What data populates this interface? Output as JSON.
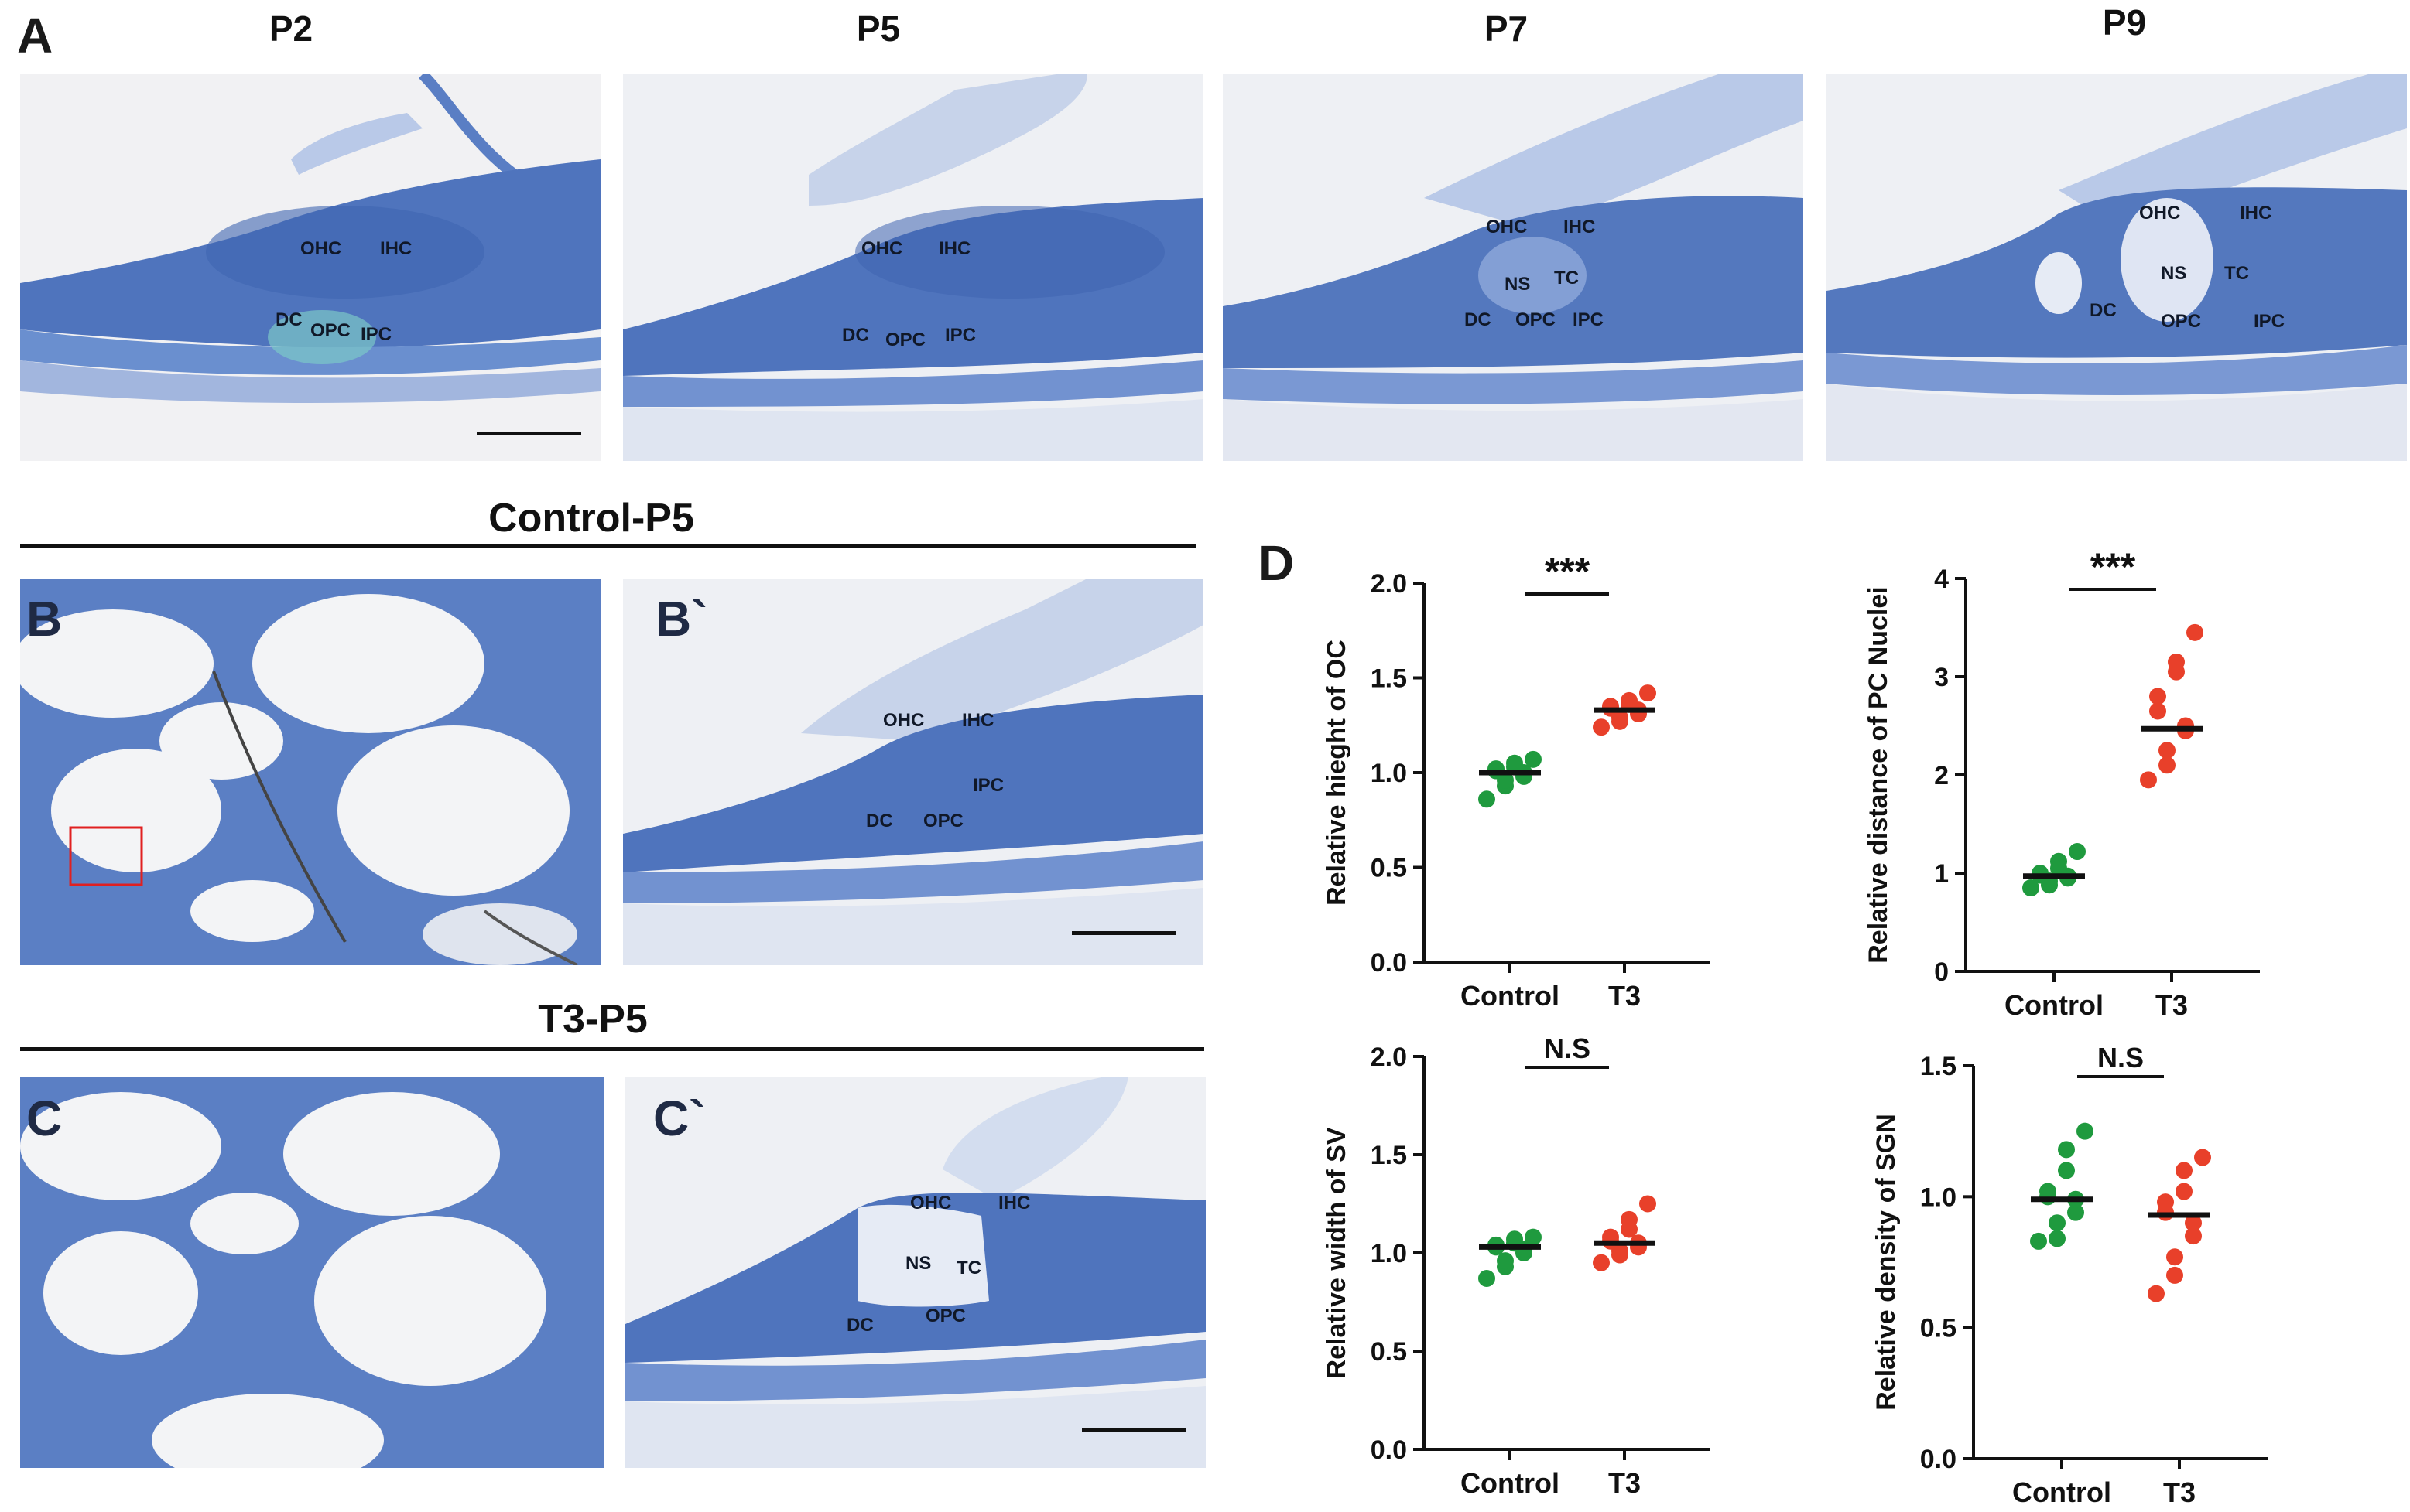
{
  "panel_A": {
    "letter": "A",
    "images": [
      {
        "time": "P2",
        "labels": [
          "OHC",
          "IHC",
          "DC",
          "OPC",
          "IPC"
        ]
      },
      {
        "time": "P5",
        "labels": [
          "OHC",
          "IHC",
          "DC",
          "OPC",
          "IPC"
        ]
      },
      {
        "time": "P7",
        "labels": [
          "OHC",
          "IHC",
          "NS",
          "TC",
          "DC",
          "OPC",
          "IPC"
        ]
      },
      {
        "time": "P9",
        "labels": [
          "OHC",
          "IHC",
          "NS",
          "TC",
          "DC",
          "OPC",
          "IPC"
        ]
      }
    ]
  },
  "panel_B": {
    "title": "Control-P5",
    "letter": "B",
    "zoom_letter": "B`",
    "labels": [
      "OHC",
      "IHC",
      "IPC",
      "DC",
      "OPC"
    ]
  },
  "panel_C": {
    "title": "T3-P5",
    "letter": "C",
    "zoom_letter": "C`",
    "labels": [
      "OHC",
      "IHC",
      "NS",
      "TC",
      "DC",
      "OPC"
    ]
  },
  "panel_D": {
    "letter": "D"
  },
  "colors": {
    "control": "#1f9a3e",
    "t3": "#e8402a",
    "stain": "#5878b8"
  },
  "chart_data": [
    {
      "type": "scatter",
      "title": "",
      "ylabel": "Relative hieght of OC",
      "categories": [
        "Control",
        "T3"
      ],
      "ylim": [
        0,
        2.0
      ],
      "yticks": [
        "0.0",
        "0.5",
        "1.0",
        "1.5",
        "2.0"
      ],
      "yticks_values": [
        0,
        0.5,
        1.0,
        1.5,
        2.0
      ],
      "significance": "***",
      "series": [
        {
          "name": "Control",
          "values": [
            0.86,
            0.93,
            0.96,
            0.98,
            1.0,
            1.01,
            1.02,
            1.03,
            1.05,
            1.07
          ],
          "median": 1.0
        },
        {
          "name": "T3",
          "values": [
            1.24,
            1.27,
            1.29,
            1.31,
            1.33,
            1.34,
            1.35,
            1.36,
            1.38,
            1.42
          ],
          "median": 1.33
        }
      ]
    },
    {
      "type": "scatter",
      "title": "",
      "ylabel": "Relative distance of  PC Nuclei",
      "categories": [
        "Control",
        "T3"
      ],
      "ylim": [
        0,
        4
      ],
      "yticks": [
        "0",
        "1",
        "2",
        "3",
        "4"
      ],
      "yticks_values": [
        0,
        1,
        2,
        3,
        4
      ],
      "significance": "***",
      "series": [
        {
          "name": "Control",
          "values": [
            0.85,
            0.88,
            0.92,
            0.95,
            0.97,
            0.98,
            1.0,
            1.05,
            1.12,
            1.22
          ],
          "median": 0.97
        },
        {
          "name": "T3",
          "values": [
            1.95,
            2.1,
            2.25,
            2.45,
            2.5,
            2.65,
            2.8,
            3.05,
            3.15,
            3.45
          ],
          "median": 2.47
        }
      ]
    },
    {
      "type": "scatter",
      "title": "",
      "ylabel": "Relative width of SV",
      "categories": [
        "Control",
        "T3"
      ],
      "ylim": [
        0,
        2.0
      ],
      "yticks": [
        "0.0",
        "0.5",
        "1.0",
        "1.5",
        "2.0"
      ],
      "yticks_values": [
        0,
        0.5,
        1.0,
        1.5,
        2.0
      ],
      "significance": "N.S",
      "series": [
        {
          "name": "Control",
          "values": [
            0.87,
            0.93,
            0.96,
            1.0,
            1.02,
            1.03,
            1.04,
            1.05,
            1.07,
            1.08
          ],
          "median": 1.03
        },
        {
          "name": "T3",
          "values": [
            0.95,
            0.99,
            1.01,
            1.03,
            1.05,
            1.06,
            1.08,
            1.12,
            1.17,
            1.25
          ],
          "median": 1.05
        }
      ]
    },
    {
      "type": "scatter",
      "title": "",
      "ylabel": "Relative density of SGN",
      "categories": [
        "Control",
        "T3"
      ],
      "ylim": [
        0,
        1.5
      ],
      "yticks": [
        "0.0",
        "0.5",
        "1.0",
        "1.5"
      ],
      "yticks_values": [
        0,
        0.5,
        1.0,
        1.5
      ],
      "significance": "N.S",
      "series": [
        {
          "name": "Control",
          "values": [
            0.83,
            0.84,
            0.9,
            0.94,
            0.99,
            1.0,
            1.02,
            1.1,
            1.18,
            1.25
          ],
          "median": 0.99
        },
        {
          "name": "T3",
          "values": [
            0.63,
            0.7,
            0.77,
            0.85,
            0.9,
            0.94,
            0.98,
            1.02,
            1.1,
            1.15
          ],
          "median": 0.93
        }
      ]
    }
  ]
}
